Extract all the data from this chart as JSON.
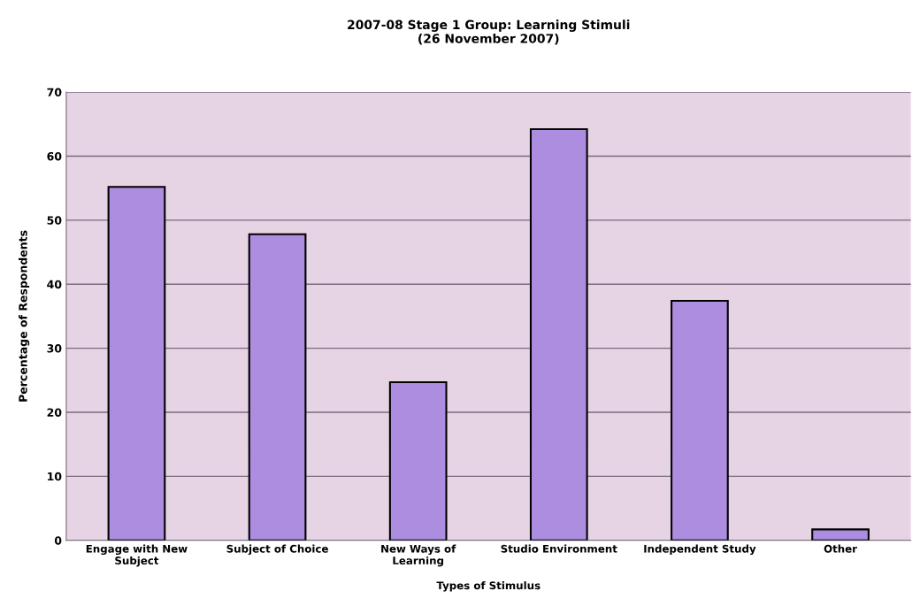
{
  "chart_data": {
    "type": "bar",
    "title": "2007-08 Stage 1 Group: Learning Stimuli\n(26 November 2007)",
    "xlabel": "Types of Stimulus",
    "ylabel": "Percentage of Respondents",
    "categories": [
      "Engage with New\nSubject",
      "Subject of Choice",
      "New Ways of\nLearning",
      "Studio Environment",
      "Independent Study",
      "Other"
    ],
    "values": [
      55.2,
      47.8,
      24.7,
      64.2,
      37.4,
      1.7
    ],
    "color": "#ad8ddf",
    "ylim": [
      0,
      70
    ],
    "yticks": [
      0,
      10,
      20,
      30,
      40,
      50,
      60,
      70
    ],
    "grid": "y"
  }
}
